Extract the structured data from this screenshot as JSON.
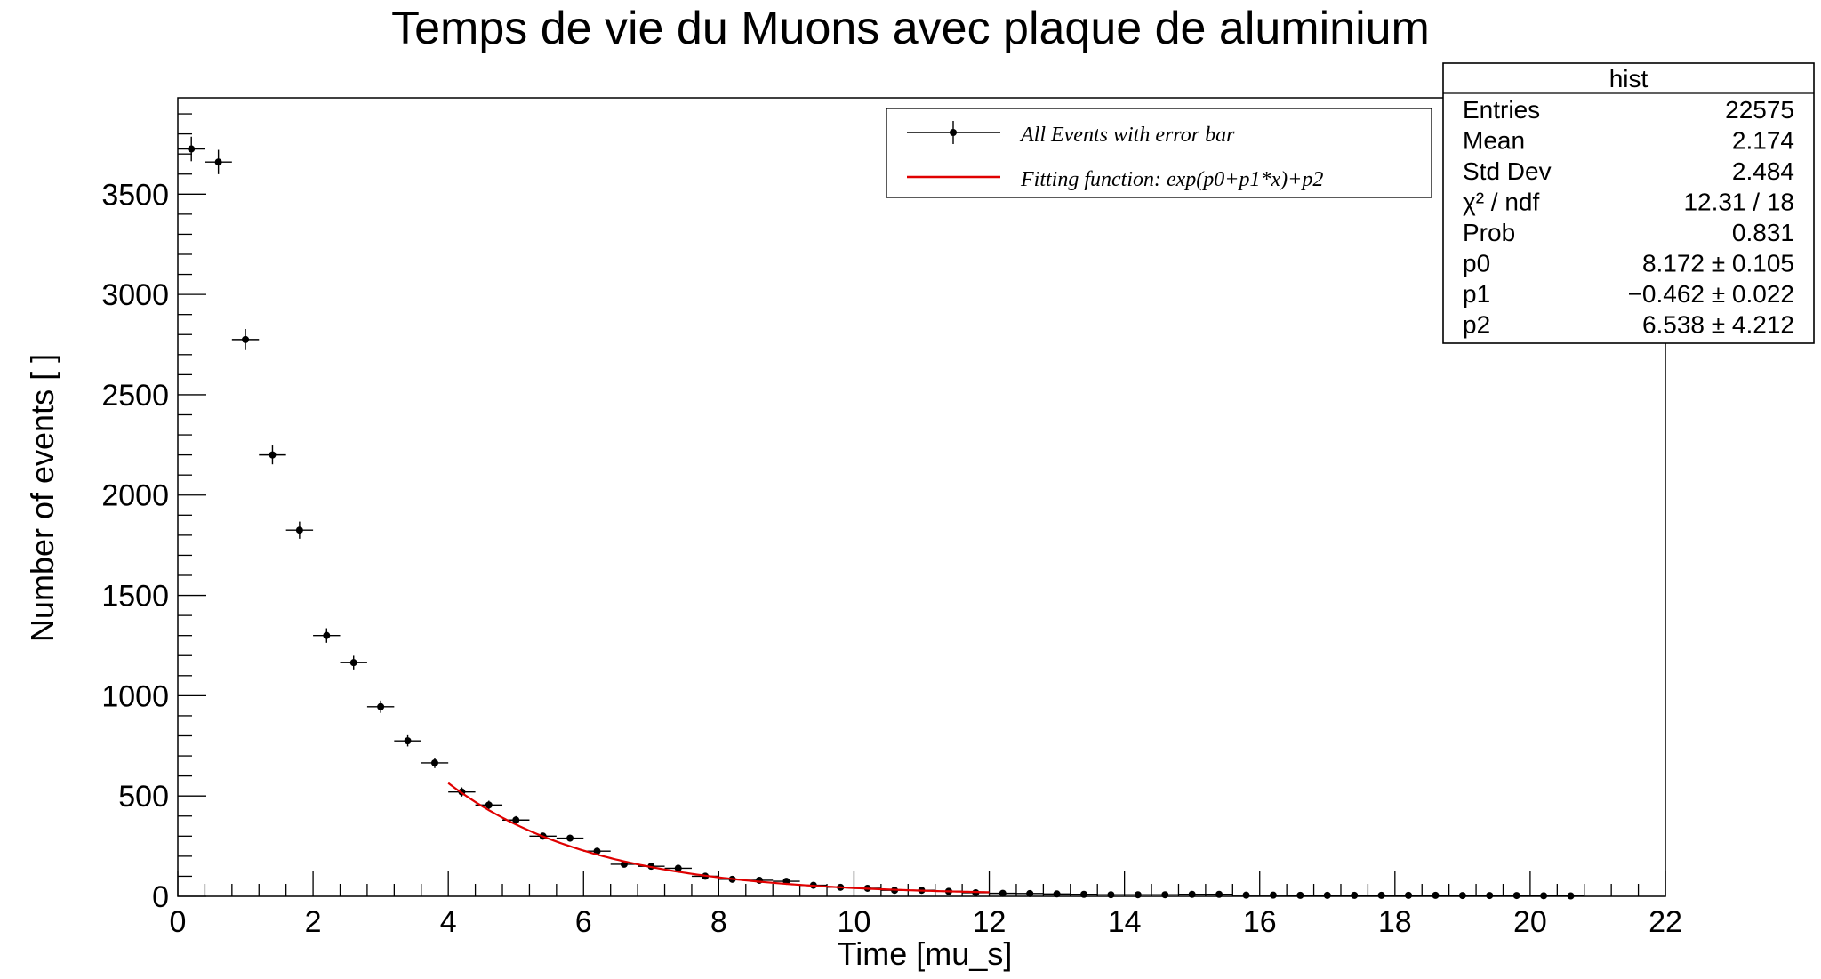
{
  "chart_data": {
    "type": "scatter",
    "title": "Temps de vie du Muons avec plaque de aluminium",
    "xlabel": "Time [mu_s]",
    "ylabel": "Number of events [ ]",
    "xlim": [
      0,
      22
    ],
    "ylim": [
      0,
      3980
    ],
    "x_ticks": [
      0,
      2,
      4,
      6,
      8,
      10,
      12,
      14,
      16,
      18,
      20,
      22
    ],
    "y_ticks": [
      0,
      500,
      1000,
      1500,
      2000,
      2500,
      3000,
      3500
    ],
    "grid": false,
    "bin_width": 0.4,
    "legend": {
      "placement": "top-right",
      "entries": [
        {
          "label": "All Events with error bar",
          "style": "marker-errorbar",
          "color": "#000000"
        },
        {
          "label": "Fitting function:  exp(p0+p1*x)+p2",
          "style": "line",
          "color": "#e00000"
        }
      ]
    },
    "series": [
      {
        "name": "All Events with error bar",
        "kind": "points_with_errors",
        "x": [
          0.2,
          0.6,
          1.0,
          1.4,
          1.8,
          2.2,
          2.6,
          3.0,
          3.4,
          3.8,
          4.2,
          4.6,
          5.0,
          5.4,
          5.8,
          6.2,
          6.6,
          7.0,
          7.4,
          7.8,
          8.2,
          8.6,
          9.0,
          9.4,
          9.8,
          10.2,
          10.6,
          11.0,
          11.4,
          11.8,
          12.2,
          12.6,
          13.0,
          13.4,
          13.8,
          14.2,
          14.6,
          15.0,
          15.4,
          15.8,
          16.2,
          16.6,
          17.0,
          17.4,
          17.8,
          18.2,
          18.6,
          19.0,
          19.4,
          19.8,
          20.2,
          20.6
        ],
        "y": [
          3725,
          3660,
          2775,
          2200,
          1825,
          1300,
          1165,
          945,
          775,
          665,
          520,
          455,
          380,
          300,
          290,
          225,
          160,
          150,
          140,
          100,
          85,
          80,
          75,
          55,
          45,
          40,
          30,
          30,
          25,
          18,
          15,
          14,
          12,
          10,
          8,
          8,
          8,
          10,
          10,
          6,
          6,
          5,
          5,
          5,
          5,
          5,
          5,
          4,
          4,
          4,
          3,
          2
        ]
      },
      {
        "name": "Fitting function:  exp(p0+p1*x)+p2",
        "kind": "function",
        "color": "#e00000",
        "x_range": [
          4.0,
          12.0
        ],
        "params": {
          "p0": 8.172,
          "p1": -0.462,
          "p2": 6.538
        }
      }
    ],
    "stats_box": {
      "title": "hist",
      "rows": [
        {
          "label": "Entries",
          "value": "22575"
        },
        {
          "label": "Mean",
          "value": "2.174"
        },
        {
          "label": "Std Dev",
          "value": "2.484"
        },
        {
          "label": "χ² / ndf",
          "value": "12.31 / 18"
        },
        {
          "label": "Prob",
          "value": "0.831"
        },
        {
          "label": "p0",
          "value": "8.172 ± 0.105"
        },
        {
          "label": "p1",
          "value": "−0.462 ± 0.022"
        },
        {
          "label": "p2",
          "value": "6.538 ± 4.212"
        }
      ]
    }
  }
}
